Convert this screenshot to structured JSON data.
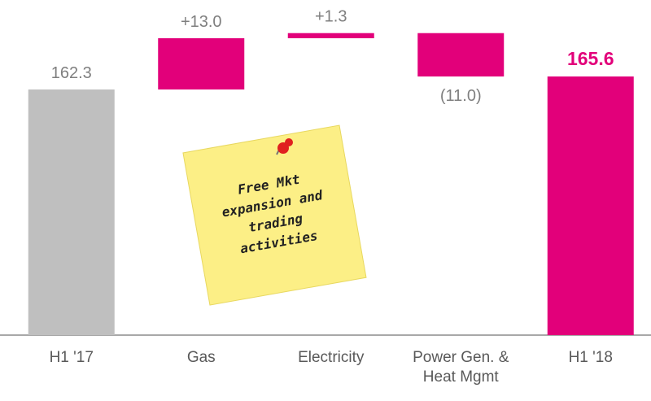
{
  "chart_data": {
    "type": "waterfall",
    "categories": [
      "H1 '17",
      "Gas",
      "Electricity",
      "Power Gen. & Heat Mgmt",
      "H1 '18"
    ],
    "measures": [
      "absolute",
      "relative",
      "relative",
      "relative",
      "total"
    ],
    "values": [
      162.3,
      13.0,
      1.3,
      -11.0,
      165.6
    ],
    "value_labels": [
      "162.3",
      "+13.0",
      "+1.3",
      "(11.0)",
      "165.6"
    ],
    "colors": [
      "#bfbfbf",
      "#e2007a",
      "#e2007a",
      "#e2007a",
      "#e2007a"
    ],
    "ylim": [
      100,
      185
    ],
    "annotation": [
      "Free Mkt",
      "expansion and",
      "trading",
      "activities"
    ]
  }
}
